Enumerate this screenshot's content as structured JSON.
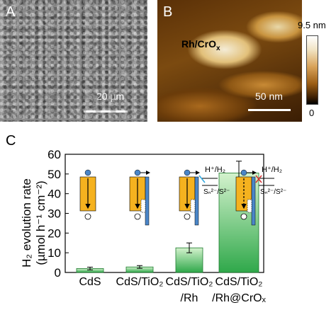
{
  "panel_a": {
    "letter": "A",
    "scalebar_label": "20 µm"
  },
  "panel_b": {
    "letter": "B",
    "particle_label": "Rh/CrO",
    "particle_label_sub": "x",
    "scalebar_label": "50 nm",
    "colorbar_max": "9.5 nm",
    "colorbar_min": "0"
  },
  "panel_c": {
    "letter": "C",
    "insets": {
      "h_plus_h2": "H⁺/H₂",
      "sulfide": "Sₙ²⁻/S²⁻"
    }
  },
  "colors": {
    "bar_green": "#3cb44b",
    "bar_green_light": "#c5ecc0",
    "orange": "#f5b21f",
    "blue": "#4a86c8"
  },
  "chart_data": {
    "type": "bar",
    "categories": [
      [
        "CdS"
      ],
      [
        "CdS/TiO₂"
      ],
      [
        "CdS/TiO₂",
        "/Rh"
      ],
      [
        "CdS/TiO₂",
        "/Rh@CrOₓ"
      ]
    ],
    "values": [
      2.0,
      2.8,
      12.5,
      50.5
    ],
    "errors": [
      0.7,
      0.7,
      2.5,
      6.0
    ],
    "ylabel_line1": "H₂ evolution rate",
    "ylabel_line2": "(µmol h⁻¹ cm⁻²)",
    "ylim": [
      0,
      60
    ],
    "yticks": [
      0,
      10,
      20,
      30,
      40,
      50,
      60
    ],
    "grid": false
  }
}
